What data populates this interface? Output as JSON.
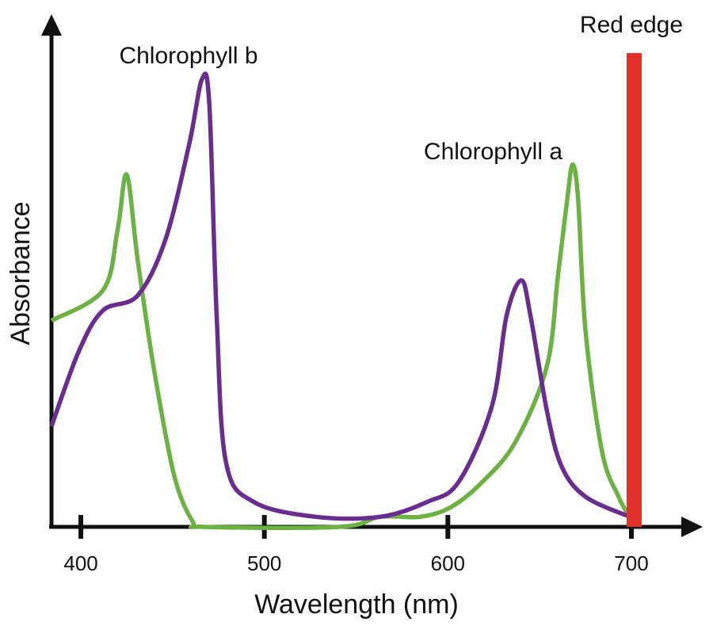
{
  "chart_data": {
    "type": "line",
    "xlabel": "Wavelength (nm)",
    "ylabel": "Absorbance",
    "xlim": [
      384,
      738
    ],
    "xticks": [
      400,
      500,
      600,
      700
    ],
    "ylim": [
      0,
      1
    ],
    "series": [
      {
        "name": "Chlorophyll a",
        "color": "#6cb243",
        "x": [
          384,
          412,
          420,
          425,
          431,
          440,
          451,
          461,
          467,
          541,
          563,
          585,
          602,
          619,
          637,
          654,
          660,
          665,
          668,
          671,
          675,
          684,
          693,
          699
        ],
        "values": [
          0.41,
          0.47,
          0.59,
          0.7,
          0.53,
          0.31,
          0.1,
          0.01,
          0,
          0,
          0.02,
          0.02,
          0.04,
          0.09,
          0.17,
          0.32,
          0.5,
          0.65,
          0.72,
          0.65,
          0.39,
          0.15,
          0.06,
          0.02
        ]
      },
      {
        "name": "Chlorophyll b",
        "color": "#6a2c8e",
        "x": [
          384,
          399,
          412,
          431,
          446,
          459,
          466,
          470,
          474,
          479,
          494,
          528,
          563,
          589,
          606,
          624,
          632,
          640,
          645,
          654,
          662,
          675,
          699
        ],
        "values": [
          0.2,
          0.35,
          0.43,
          0.46,
          0.57,
          0.76,
          0.89,
          0.84,
          0.42,
          0.13,
          0.05,
          0.02,
          0.02,
          0.05,
          0.09,
          0.24,
          0.42,
          0.49,
          0.42,
          0.23,
          0.12,
          0.06,
          0.02
        ]
      }
    ],
    "red_edge": {
      "label": "Red edge",
      "x": 700,
      "color": "#e0322b"
    }
  }
}
